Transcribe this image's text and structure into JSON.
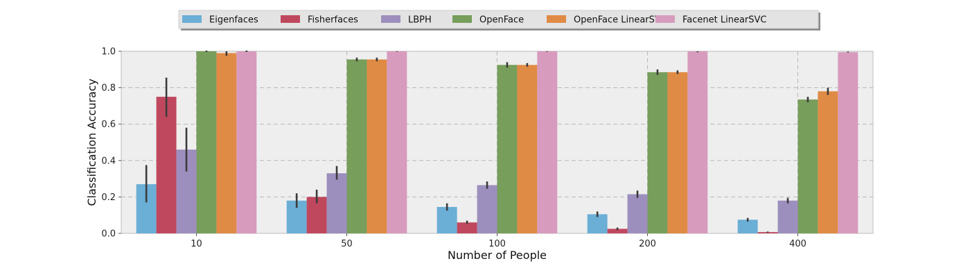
{
  "chart_data": {
    "type": "bar",
    "xlabel": "Number of People",
    "ylabel": "Classification Accuracy",
    "ylim": [
      0,
      1.0
    ],
    "yticks": [
      "0.0",
      "0.2",
      "0.4",
      "0.6",
      "0.8",
      "1.0"
    ],
    "grid": true,
    "legend_position": "top-center",
    "categories": [
      "10",
      "50",
      "100",
      "200",
      "400"
    ],
    "series": [
      {
        "name": "Eigenfaces",
        "color": "#6baed6",
        "values": [
          0.27,
          0.18,
          0.145,
          0.105,
          0.075
        ],
        "err_low": [
          0.17,
          0.14,
          0.125,
          0.09,
          0.065
        ],
        "err_high": [
          0.375,
          0.22,
          0.165,
          0.12,
          0.085
        ]
      },
      {
        "name": "Fisherfaces",
        "color": "#c0485e",
        "values": [
          0.75,
          0.2,
          0.06,
          0.025,
          0.007
        ],
        "err_low": [
          0.64,
          0.165,
          0.052,
          0.018,
          0.004
        ],
        "err_high": [
          0.855,
          0.24,
          0.07,
          0.032,
          0.01
        ]
      },
      {
        "name": "LBPH",
        "color": "#9d8fbd",
        "values": [
          0.46,
          0.33,
          0.265,
          0.215,
          0.18
        ],
        "err_low": [
          0.34,
          0.295,
          0.245,
          0.195,
          0.165
        ],
        "err_high": [
          0.58,
          0.37,
          0.285,
          0.235,
          0.195
        ]
      },
      {
        "name": "OpenFace",
        "color": "#779e5b",
        "values": [
          1.0,
          0.955,
          0.925,
          0.885,
          0.735
        ],
        "err_low": [
          1.0,
          0.945,
          0.91,
          0.87,
          0.72
        ],
        "err_high": [
          1.0,
          0.965,
          0.94,
          0.9,
          0.75
        ]
      },
      {
        "name": "OpenFace LinearSVC",
        "color": "#e08b45",
        "values": [
          0.99,
          0.955,
          0.925,
          0.885,
          0.78
        ],
        "err_low": [
          0.975,
          0.945,
          0.915,
          0.875,
          0.76
        ],
        "err_high": [
          1.005,
          0.965,
          0.935,
          0.895,
          0.8
        ]
      },
      {
        "name": "Facenet LinearSVC",
        "color": "#d79bbd",
        "values": [
          1.0,
          1.0,
          1.0,
          1.0,
          0.995
        ],
        "err_low": [
          1.0,
          0.997,
          0.997,
          0.995,
          0.993
        ],
        "err_high": [
          1.0,
          1.0,
          1.0,
          1.0,
          0.998
        ]
      }
    ]
  }
}
